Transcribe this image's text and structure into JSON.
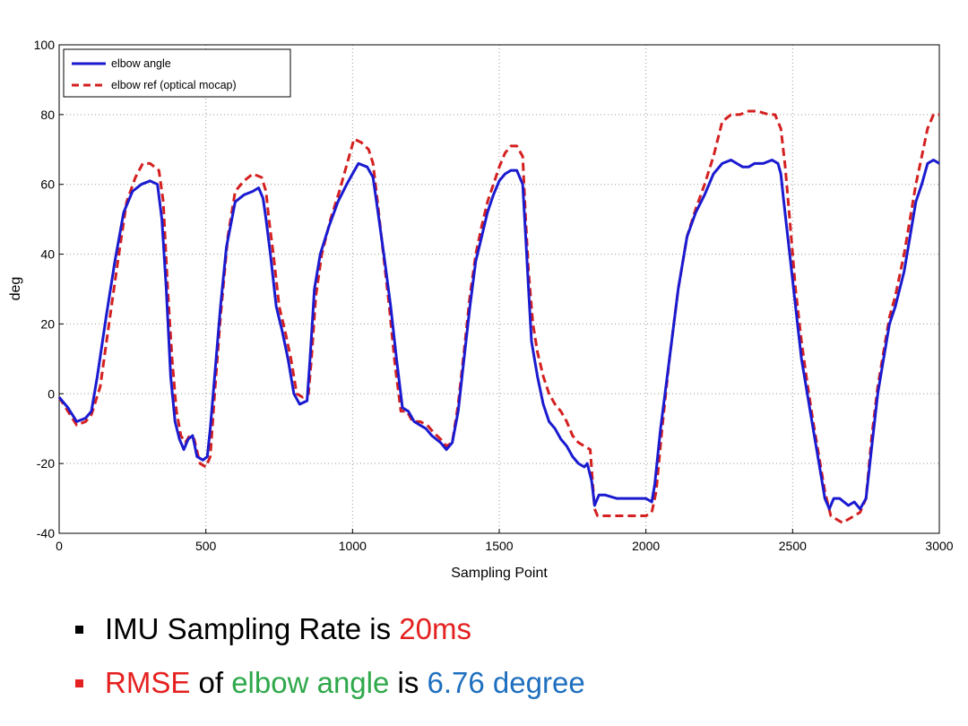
{
  "chart_data": {
    "type": "line",
    "xlabel": "Sampling Point",
    "ylabel": "deg",
    "xlim": [
      0,
      3000
    ],
    "ylim": [
      -40,
      100
    ],
    "xticks": [
      0,
      500,
      1000,
      1500,
      2000,
      2500,
      3000
    ],
    "yticks": [
      -40,
      -20,
      0,
      20,
      40,
      60,
      80,
      100
    ],
    "grid": true,
    "legend_position": "top-left",
    "series": [
      {
        "name": "elbow angle",
        "color": "#1a1ad0",
        "style": "solid",
        "points": [
          [
            0,
            -1
          ],
          [
            30,
            -4
          ],
          [
            60,
            -8
          ],
          [
            90,
            -7
          ],
          [
            110,
            -5
          ],
          [
            130,
            5
          ],
          [
            160,
            22
          ],
          [
            190,
            38
          ],
          [
            220,
            52
          ],
          [
            250,
            58
          ],
          [
            280,
            60
          ],
          [
            310,
            61
          ],
          [
            335,
            60
          ],
          [
            350,
            50
          ],
          [
            365,
            30
          ],
          [
            380,
            5
          ],
          [
            395,
            -8
          ],
          [
            410,
            -13
          ],
          [
            425,
            -16
          ],
          [
            440,
            -13
          ],
          [
            455,
            -12
          ],
          [
            470,
            -18
          ],
          [
            490,
            -19
          ],
          [
            505,
            -18
          ],
          [
            515,
            -10
          ],
          [
            530,
            5
          ],
          [
            550,
            25
          ],
          [
            570,
            42
          ],
          [
            600,
            55
          ],
          [
            630,
            57
          ],
          [
            660,
            58
          ],
          [
            680,
            59
          ],
          [
            695,
            56
          ],
          [
            705,
            50
          ],
          [
            720,
            40
          ],
          [
            740,
            25
          ],
          [
            760,
            18
          ],
          [
            780,
            10
          ],
          [
            800,
            0
          ],
          [
            820,
            -3
          ],
          [
            845,
            -2
          ],
          [
            855,
            10
          ],
          [
            870,
            30
          ],
          [
            890,
            40
          ],
          [
            920,
            48
          ],
          [
            950,
            55
          ],
          [
            980,
            60
          ],
          [
            1000,
            63
          ],
          [
            1020,
            66
          ],
          [
            1050,
            65
          ],
          [
            1070,
            62
          ],
          [
            1090,
            50
          ],
          [
            1110,
            38
          ],
          [
            1130,
            25
          ],
          [
            1150,
            10
          ],
          [
            1170,
            -4
          ],
          [
            1190,
            -5
          ],
          [
            1210,
            -8
          ],
          [
            1230,
            -9
          ],
          [
            1250,
            -10
          ],
          [
            1270,
            -12
          ],
          [
            1300,
            -14
          ],
          [
            1320,
            -16
          ],
          [
            1340,
            -14
          ],
          [
            1360,
            -5
          ],
          [
            1380,
            10
          ],
          [
            1400,
            25
          ],
          [
            1420,
            38
          ],
          [
            1440,
            45
          ],
          [
            1460,
            52
          ],
          [
            1480,
            57
          ],
          [
            1500,
            61
          ],
          [
            1520,
            63
          ],
          [
            1540,
            64
          ],
          [
            1560,
            64
          ],
          [
            1580,
            60
          ],
          [
            1590,
            45
          ],
          [
            1600,
            30
          ],
          [
            1610,
            15
          ],
          [
            1630,
            5
          ],
          [
            1650,
            -3
          ],
          [
            1670,
            -8
          ],
          [
            1690,
            -10
          ],
          [
            1710,
            -13
          ],
          [
            1730,
            -15
          ],
          [
            1750,
            -18
          ],
          [
            1770,
            -20
          ],
          [
            1790,
            -21
          ],
          [
            1800,
            -20
          ],
          [
            1815,
            -25
          ],
          [
            1825,
            -32
          ],
          [
            1840,
            -29
          ],
          [
            1860,
            -29
          ],
          [
            1900,
            -30
          ],
          [
            1950,
            -30
          ],
          [
            2000,
            -30
          ],
          [
            2020,
            -31
          ],
          [
            2030,
            -26
          ],
          [
            2050,
            -10
          ],
          [
            2080,
            10
          ],
          [
            2110,
            30
          ],
          [
            2140,
            45
          ],
          [
            2170,
            52
          ],
          [
            2200,
            57
          ],
          [
            2230,
            63
          ],
          [
            2260,
            66
          ],
          [
            2290,
            67
          ],
          [
            2310,
            66
          ],
          [
            2330,
            65
          ],
          [
            2350,
            65
          ],
          [
            2370,
            66
          ],
          [
            2400,
            66
          ],
          [
            2430,
            67
          ],
          [
            2450,
            66
          ],
          [
            2460,
            63
          ],
          [
            2470,
            55
          ],
          [
            2490,
            40
          ],
          [
            2510,
            25
          ],
          [
            2530,
            10
          ],
          [
            2550,
            0
          ],
          [
            2570,
            -10
          ],
          [
            2590,
            -20
          ],
          [
            2610,
            -30
          ],
          [
            2625,
            -33
          ],
          [
            2640,
            -30
          ],
          [
            2660,
            -30
          ],
          [
            2690,
            -32
          ],
          [
            2710,
            -31
          ],
          [
            2730,
            -33
          ],
          [
            2750,
            -30
          ],
          [
            2770,
            -15
          ],
          [
            2790,
            0
          ],
          [
            2810,
            10
          ],
          [
            2830,
            20
          ],
          [
            2850,
            25
          ],
          [
            2880,
            35
          ],
          [
            2900,
            45
          ],
          [
            2920,
            55
          ],
          [
            2940,
            60
          ],
          [
            2960,
            66
          ],
          [
            2980,
            67
          ],
          [
            3000,
            66
          ]
        ]
      },
      {
        "name": "elbow ref (optical mocap)",
        "color": "#d42020",
        "style": "dashed",
        "points": [
          [
            0,
            -1
          ],
          [
            30,
            -5
          ],
          [
            60,
            -9
          ],
          [
            90,
            -8
          ],
          [
            110,
            -6
          ],
          [
            140,
            2
          ],
          [
            170,
            20
          ],
          [
            200,
            38
          ],
          [
            230,
            55
          ],
          [
            260,
            62
          ],
          [
            285,
            66
          ],
          [
            310,
            66
          ],
          [
            340,
            64
          ],
          [
            355,
            55
          ],
          [
            370,
            30
          ],
          [
            385,
            10
          ],
          [
            400,
            -5
          ],
          [
            415,
            -12
          ],
          [
            430,
            -14
          ],
          [
            445,
            -12
          ],
          [
            460,
            -13
          ],
          [
            480,
            -20
          ],
          [
            500,
            -21
          ],
          [
            515,
            -18
          ],
          [
            530,
            0
          ],
          [
            550,
            22
          ],
          [
            575,
            45
          ],
          [
            600,
            58
          ],
          [
            630,
            61
          ],
          [
            660,
            63
          ],
          [
            690,
            62
          ],
          [
            705,
            58
          ],
          [
            715,
            50
          ],
          [
            730,
            40
          ],
          [
            750,
            25
          ],
          [
            770,
            18
          ],
          [
            790,
            10
          ],
          [
            810,
            0
          ],
          [
            830,
            -1
          ],
          [
            850,
            0
          ],
          [
            860,
            10
          ],
          [
            875,
            28
          ],
          [
            895,
            40
          ],
          [
            925,
            50
          ],
          [
            955,
            58
          ],
          [
            985,
            67
          ],
          [
            1005,
            73
          ],
          [
            1030,
            72
          ],
          [
            1055,
            70
          ],
          [
            1070,
            66
          ],
          [
            1085,
            55
          ],
          [
            1105,
            40
          ],
          [
            1125,
            25
          ],
          [
            1145,
            8
          ],
          [
            1165,
            -5
          ],
          [
            1185,
            -5
          ],
          [
            1205,
            -8
          ],
          [
            1230,
            -8
          ],
          [
            1255,
            -9
          ],
          [
            1275,
            -11
          ],
          [
            1300,
            -13
          ],
          [
            1320,
            -15
          ],
          [
            1340,
            -14
          ],
          [
            1360,
            -3
          ],
          [
            1380,
            12
          ],
          [
            1400,
            28
          ],
          [
            1420,
            40
          ],
          [
            1440,
            48
          ],
          [
            1460,
            55
          ],
          [
            1480,
            60
          ],
          [
            1500,
            65
          ],
          [
            1520,
            69
          ],
          [
            1540,
            71
          ],
          [
            1560,
            71
          ],
          [
            1580,
            68
          ],
          [
            1590,
            50
          ],
          [
            1600,
            35
          ],
          [
            1615,
            20
          ],
          [
            1630,
            12
          ],
          [
            1650,
            5
          ],
          [
            1670,
            0
          ],
          [
            1690,
            -3
          ],
          [
            1710,
            -5
          ],
          [
            1730,
            -8
          ],
          [
            1750,
            -12
          ],
          [
            1770,
            -14
          ],
          [
            1790,
            -15
          ],
          [
            1810,
            -16
          ],
          [
            1825,
            -33
          ],
          [
            1835,
            -35
          ],
          [
            1860,
            -35
          ],
          [
            1900,
            -35
          ],
          [
            1950,
            -35
          ],
          [
            2000,
            -35
          ],
          [
            2020,
            -34
          ],
          [
            2035,
            -28
          ],
          [
            2055,
            -10
          ],
          [
            2080,
            10
          ],
          [
            2110,
            30
          ],
          [
            2140,
            45
          ],
          [
            2170,
            53
          ],
          [
            2200,
            60
          ],
          [
            2230,
            68
          ],
          [
            2260,
            78
          ],
          [
            2290,
            80
          ],
          [
            2320,
            80
          ],
          [
            2350,
            81
          ],
          [
            2380,
            81
          ],
          [
            2420,
            80
          ],
          [
            2440,
            80
          ],
          [
            2460,
            76
          ],
          [
            2475,
            65
          ],
          [
            2490,
            50
          ],
          [
            2510,
            30
          ],
          [
            2530,
            15
          ],
          [
            2550,
            3
          ],
          [
            2570,
            -8
          ],
          [
            2590,
            -18
          ],
          [
            2610,
            -28
          ],
          [
            2630,
            -35
          ],
          [
            2650,
            -36
          ],
          [
            2670,
            -37
          ],
          [
            2690,
            -36
          ],
          [
            2710,
            -35
          ],
          [
            2730,
            -34
          ],
          [
            2750,
            -30
          ],
          [
            2770,
            -12
          ],
          [
            2790,
            2
          ],
          [
            2810,
            12
          ],
          [
            2830,
            22
          ],
          [
            2850,
            28
          ],
          [
            2880,
            40
          ],
          [
            2900,
            50
          ],
          [
            2920,
            60
          ],
          [
            2940,
            68
          ],
          [
            2960,
            76
          ],
          [
            2980,
            80
          ],
          [
            3000,
            80
          ]
        ]
      }
    ]
  },
  "bullets": [
    {
      "marker_color": "#000000",
      "parts": [
        {
          "text": "IMU Sampling Rate is ",
          "color": "#000000"
        },
        {
          "text": "20ms",
          "color": "#e52020"
        }
      ]
    },
    {
      "marker_color": "#e52020",
      "parts": [
        {
          "text": "RMSE",
          "color": "#e52020"
        },
        {
          "text": " of ",
          "color": "#000000"
        },
        {
          "text": "elbow angle",
          "color": "#2ea84a"
        },
        {
          "text": " is ",
          "color": "#000000"
        },
        {
          "text": "6.76 degree",
          "color": "#1e6fbf"
        }
      ]
    }
  ]
}
